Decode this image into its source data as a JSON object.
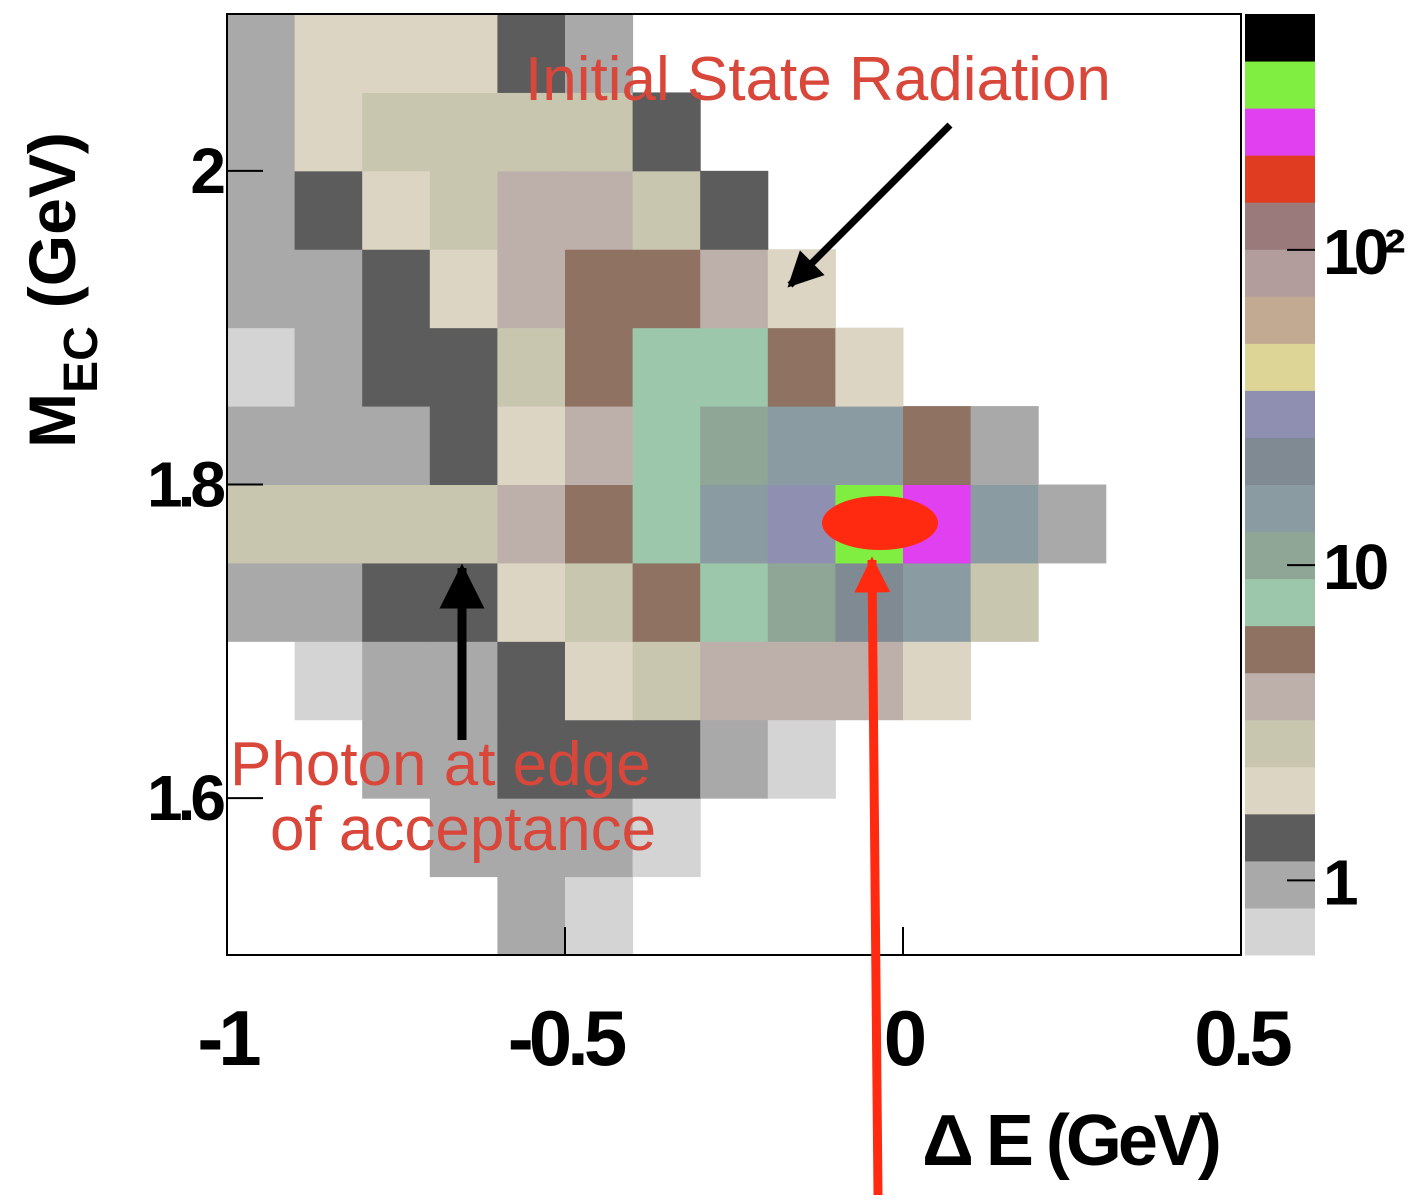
{
  "chart_data": {
    "type": "heatmap",
    "xlabel": "Δ E (GeV)",
    "ylabel": {
      "main": "M",
      "sub": "EC",
      "unit": "(GeV)"
    },
    "xlim": [
      -1,
      0.5
    ],
    "ylim": [
      1.5,
      2.1
    ],
    "xticks": [
      -1,
      -0.5,
      0,
      0.5
    ],
    "yticks": [
      1.6,
      1.8,
      2
    ],
    "zlim": [
      0.58,
      560
    ],
    "zscale": "log",
    "zticks": [
      1,
      10,
      {
        "value": 100,
        "label": "10²"
      }
    ],
    "colormap": [
      "#d4d4d4",
      "#a9a9a9",
      "#5c5c5c",
      "#ddd5c3",
      "#c9c6b0",
      "#bdb0aa",
      "#8f7262",
      "#9cc7aa",
      "#8fa595",
      "#8a9ba2",
      "#7f8a92",
      "#8f8fb2",
      "#dcd595",
      "#c2aa92",
      "#b39c9c",
      "#9a7a7a",
      "#e03c22",
      "#e040f0",
      "#80ee40",
      "#000000"
    ],
    "xbins": [
      -1,
      -0.9,
      -0.8,
      -0.7,
      -0.6,
      -0.5,
      -0.4,
      -0.3,
      -0.2,
      -0.1,
      0,
      0.1,
      0.2,
      0.3,
      0.4,
      0.5
    ],
    "ybins": [
      1.5,
      1.55,
      1.6,
      1.65,
      1.7,
      1.75,
      1.8,
      1.85,
      1.9,
      1.95,
      2,
      2.05,
      2.1
    ],
    "z": [
      [
        null,
        null,
        null,
        null,
        1,
        0.8,
        null,
        null,
        null,
        null,
        null,
        null,
        null,
        null,
        null
      ],
      [
        null,
        null,
        null,
        1,
        1,
        1,
        0.8,
        null,
        null,
        null,
        null,
        null,
        null,
        null,
        null
      ],
      [
        null,
        null,
        1,
        1,
        1.5,
        1.5,
        1.5,
        1,
        0.8,
        null,
        null,
        null,
        null,
        null,
        null
      ],
      [
        null,
        0.8,
        1,
        1,
        1.5,
        2,
        3,
        4,
        4,
        4,
        2,
        null,
        null,
        null,
        null
      ],
      [
        1,
        1,
        1.5,
        1.5,
        2,
        3,
        5,
        8,
        12,
        20,
        15,
        3,
        null,
        null,
        null
      ],
      [
        3,
        3,
        3,
        3,
        4,
        5,
        8,
        15,
        30,
        300,
        200,
        15,
        1,
        null,
        null
      ],
      [
        1,
        1,
        1,
        1.5,
        2,
        4,
        7,
        10,
        15,
        15,
        6,
        1,
        null,
        null,
        null
      ],
      [
        0.8,
        1,
        1.5,
        1.5,
        3,
        5,
        7,
        8,
        5,
        2,
        null,
        null,
        null,
        null,
        null
      ],
      [
        1,
        1,
        1.5,
        2,
        4,
        5,
        5,
        4,
        2,
        null,
        null,
        null,
        null,
        null,
        null
      ],
      [
        1,
        1.5,
        2,
        3,
        4,
        4,
        3,
        1.5,
        null,
        null,
        null,
        null,
        null,
        null,
        null
      ],
      [
        1,
        2,
        2.5,
        3,
        3,
        2.5,
        1.5,
        null,
        null,
        null,
        null,
        null,
        null,
        null,
        null
      ],
      [
        1,
        2,
        2,
        2,
        1.5,
        1,
        null,
        null,
        null,
        null,
        null,
        null,
        null,
        null,
        null
      ]
    ],
    "annotations": [
      {
        "lines": [
          "Initial State Radiation"
        ]
      },
      {
        "lines": [
          "Photon at edge",
          "of acceptance"
        ]
      }
    ]
  }
}
